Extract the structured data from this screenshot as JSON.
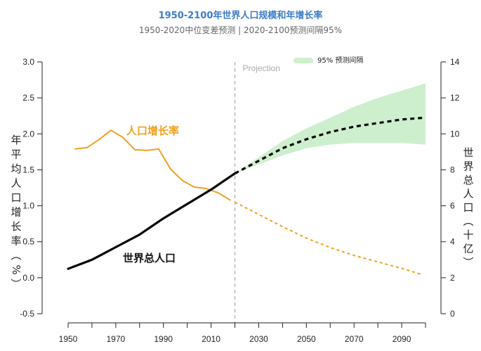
{
  "header": {
    "title": "1950-2100年世界人口规模和年增长率",
    "subtitle": "1950-2020中位变差预测 | 2020-2100预测间隔95%"
  },
  "chart_data": {
    "type": "line",
    "title": "1950-2100年世界人口规模和年增长率",
    "subtitle": "1950-2020中位变差预测 | 2020-2100预测间隔95%",
    "xlabel": "",
    "ylabel_left": "年平均人口增长率（%）",
    "ylabel_right": "世界总人口（十亿）",
    "xlim": [
      1950,
      2100
    ],
    "ylim_left": [
      -0.5,
      3.0
    ],
    "ylim_right": [
      0,
      14
    ],
    "x_ticks": [
      1950,
      1960,
      1970,
      1980,
      1990,
      2000,
      2010,
      2020,
      2030,
      2040,
      2050,
      2060,
      2070,
      2080,
      2090,
      2100
    ],
    "x_tick_labels": [
      "1950",
      "1970",
      "1990",
      "2010",
      "2030",
      "2050",
      "2070",
      "2090"
    ],
    "x_tick_label_values": [
      1950,
      1970,
      1990,
      2010,
      2030,
      2050,
      2070,
      2090
    ],
    "y_left_ticks": [
      "3.0",
      "2.5",
      "2.0",
      "1.5",
      "1.0",
      "0.5",
      "0.0",
      "-0.5"
    ],
    "y_left_tick_values": [
      3.0,
      2.5,
      2.0,
      1.5,
      1.0,
      0.5,
      0.0,
      -0.5
    ],
    "y_right_ticks": [
      "14",
      "12",
      "10",
      "8",
      "6",
      "4",
      "2",
      "0"
    ],
    "y_right_tick_values": [
      14,
      12,
      10,
      8,
      6,
      4,
      2,
      0
    ],
    "projection_line": {
      "year": 2020,
      "label": "Projection"
    },
    "legend": {
      "label": "95% 预测间隔",
      "color": "#cdefcd",
      "position": "top-center"
    },
    "series": [
      {
        "name": "人口增长率",
        "axis": "left",
        "color": "#f0a020",
        "style": "solid",
        "x": [
          1953,
          1958,
          1963,
          1968,
          1973,
          1978,
          1983,
          1988,
          1993,
          1998,
          2003,
          2008,
          2013,
          2018
        ],
        "values": [
          1.79,
          1.81,
          1.92,
          2.05,
          1.95,
          1.78,
          1.77,
          1.79,
          1.51,
          1.35,
          1.26,
          1.24,
          1.18,
          1.08
        ]
      },
      {
        "name": "人口增长率 (预测)",
        "axis": "left",
        "color": "#f0a020",
        "style": "dashed",
        "x": [
          2020,
          2030,
          2040,
          2050,
          2060,
          2070,
          2080,
          2090,
          2098
        ],
        "values": [
          1.05,
          0.88,
          0.71,
          0.55,
          0.42,
          0.31,
          0.22,
          0.13,
          0.05
        ]
      },
      {
        "name": "世界总人口",
        "axis": "right",
        "color": "#000000",
        "style": "solid",
        "x": [
          1950,
          1960,
          1970,
          1980,
          1990,
          2000,
          2010,
          2020
        ],
        "values": [
          2.5,
          3.0,
          3.7,
          4.4,
          5.3,
          6.1,
          6.9,
          7.8
        ]
      },
      {
        "name": "世界总人口 (预测中位)",
        "axis": "right",
        "color": "#000000",
        "style": "dashed",
        "x": [
          2020,
          2030,
          2040,
          2050,
          2060,
          2070,
          2080,
          2090,
          2100
        ],
        "values": [
          7.8,
          8.5,
          9.2,
          9.7,
          10.1,
          10.4,
          10.6,
          10.8,
          10.9
        ]
      }
    ],
    "band": {
      "name": "95% 预测间隔",
      "axis": "right",
      "color": "#cdefcd",
      "x": [
        2020,
        2030,
        2040,
        2050,
        2060,
        2070,
        2080,
        2090,
        2100
      ],
      "lower": [
        7.8,
        8.3,
        8.8,
        9.2,
        9.4,
        9.5,
        9.5,
        9.5,
        9.4
      ],
      "upper": [
        7.8,
        8.7,
        9.6,
        10.3,
        10.9,
        11.5,
        12.0,
        12.4,
        12.8
      ]
    },
    "annotations": [
      {
        "text": "人口增长率",
        "color": "#f0a020"
      },
      {
        "text": "世界总人口",
        "color": "#111111"
      }
    ]
  }
}
